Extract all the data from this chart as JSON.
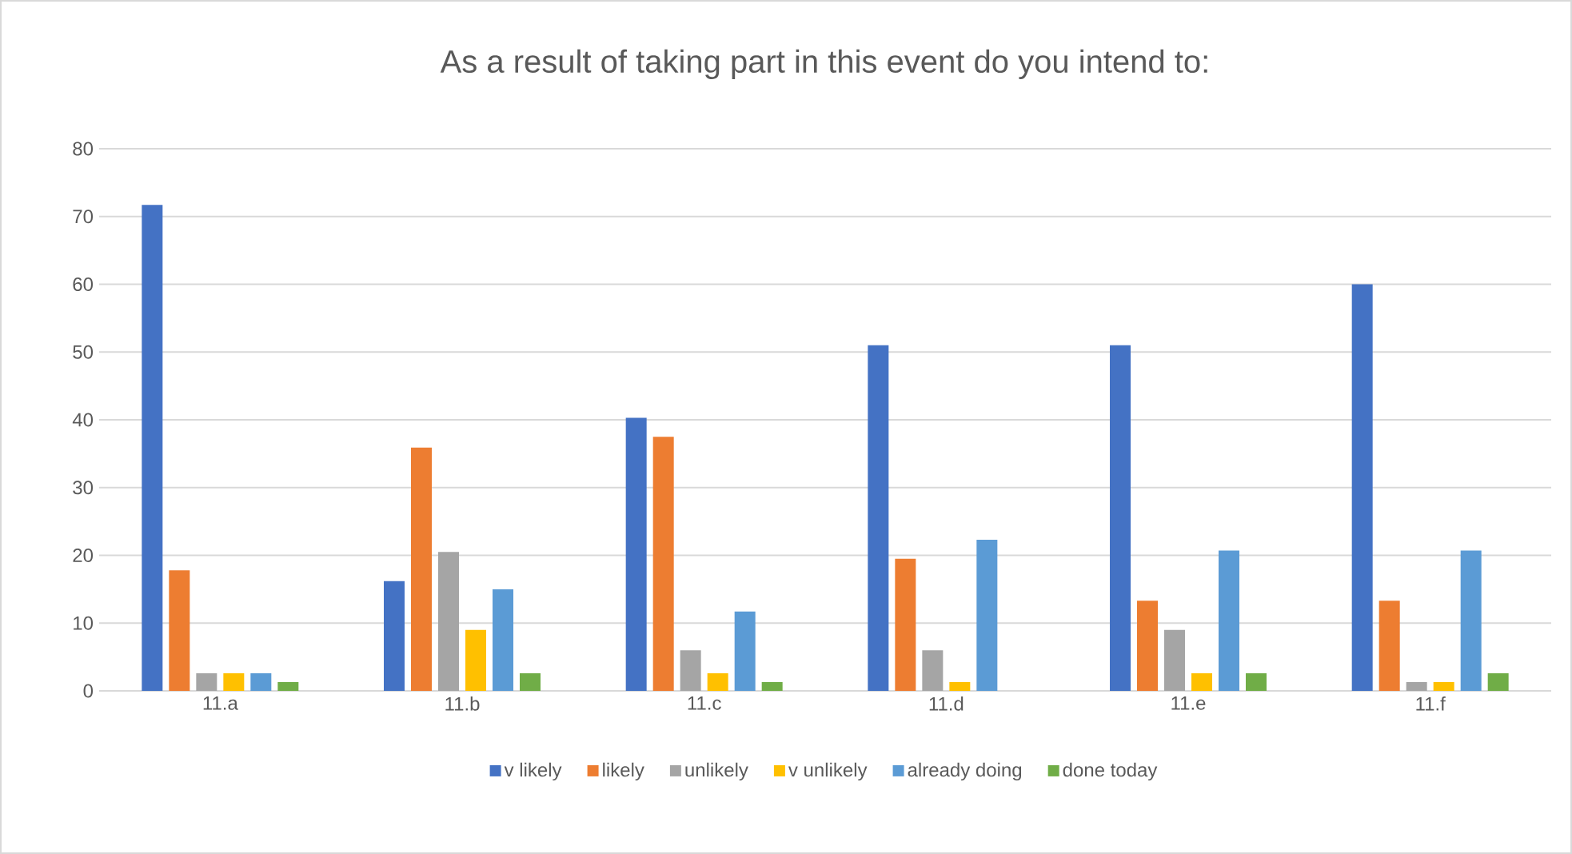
{
  "chart_data": {
    "type": "bar",
    "title": "As a result of taking part in this event do you intend to:",
    "categories": [
      "11.a",
      "11.b",
      "11.c",
      "11.d",
      "11.e",
      "11.f"
    ],
    "series": [
      {
        "name": "v likely",
        "color": "#4472c4",
        "values": [
          71.7,
          16.2,
          40.3,
          51,
          51,
          60
        ]
      },
      {
        "name": "likely",
        "color": "#ed7d31",
        "values": [
          17.8,
          35.9,
          37.5,
          19.5,
          13.3,
          13.3
        ]
      },
      {
        "name": "unlikely",
        "color": "#a5a5a5",
        "values": [
          2.6,
          20.5,
          6,
          6,
          9,
          1.3
        ]
      },
      {
        "name": "v unlikely",
        "color": "#ffc000",
        "values": [
          2.6,
          9,
          2.6,
          1.3,
          2.6,
          1.3
        ]
      },
      {
        "name": "already doing",
        "color": "#5b9bd5",
        "values": [
          2.6,
          15,
          11.7,
          22.3,
          20.7,
          20.7
        ]
      },
      {
        "name": "done today",
        "color": "#70ad47",
        "values": [
          1.3,
          2.6,
          1.3,
          0,
          2.6,
          2.6
        ]
      }
    ],
    "ylim": [
      0,
      80
    ],
    "yticks": [
      0,
      10,
      20,
      30,
      40,
      50,
      60,
      70,
      80
    ],
    "grid": true,
    "legend": "bottom"
  }
}
